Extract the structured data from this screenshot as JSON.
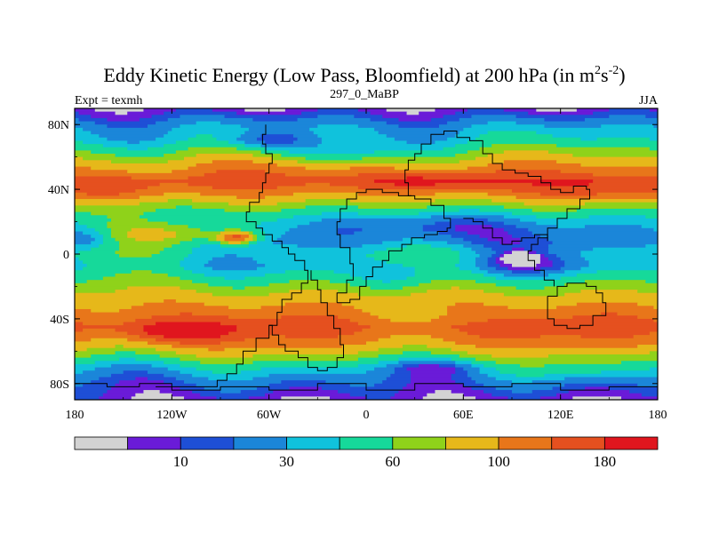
{
  "chart_data": {
    "type": "heatmap",
    "title": "Eddy Kinetic Energy (Low Pass, Bloomfield) at 200 hPa (in m",
    "title_units_base": "s",
    "title_sup1": "2",
    "title_sup2": "-2",
    "title_close": ")",
    "subtitle": "297_0_MaBP",
    "left_label": "Expt = texmh",
    "right_label": "JJA",
    "xlabel": "",
    "ylabel": "",
    "xlim": [
      -180,
      180
    ],
    "ylim": [
      -90,
      90
    ],
    "x_ticks": [
      {
        "value": -180,
        "label": "180"
      },
      {
        "value": -120,
        "label": "120W"
      },
      {
        "value": -60,
        "label": "60W"
      },
      {
        "value": 0,
        "label": "0"
      },
      {
        "value": 60,
        "label": "60E"
      },
      {
        "value": 120,
        "label": "120E"
      },
      {
        "value": 180,
        "label": "180"
      }
    ],
    "y_ticks": [
      {
        "value": 80,
        "label": "80N"
      },
      {
        "value": 40,
        "label": "40N"
      },
      {
        "value": 0,
        "label": "0"
      },
      {
        "value": -40,
        "label": "40S"
      },
      {
        "value": -80,
        "label": "80S"
      }
    ],
    "levels": [
      0,
      10,
      20,
      30,
      45,
      60,
      80,
      100,
      125,
      150,
      180,
      220
    ],
    "colorbar_colors": [
      "#d3d3d3",
      "#6a1bd8",
      "#1e4fd6",
      "#1b86d9",
      "#10c2dc",
      "#16d99a",
      "#8fd21a",
      "#e6b81a",
      "#e8761a",
      "#e5501f",
      "#e0161e"
    ],
    "colorbar_labels": [
      {
        "pos": 1,
        "label": "10"
      },
      {
        "pos": 3,
        "label": "30"
      },
      {
        "pos": 5,
        "label": "60"
      },
      {
        "pos": 7,
        "label": "100"
      },
      {
        "pos": 9,
        "label": "180"
      }
    ],
    "latitude_profile": [
      {
        "lat": 90,
        "value": 12
      },
      {
        "lat": 85,
        "value": 25
      },
      {
        "lat": 78,
        "value": 45
      },
      {
        "lat": 70,
        "value": 60
      },
      {
        "lat": 62,
        "value": 90
      },
      {
        "lat": 55,
        "value": 120
      },
      {
        "lat": 45,
        "value": 160
      },
      {
        "lat": 38,
        "value": 130
      },
      {
        "lat": 30,
        "value": 90
      },
      {
        "lat": 22,
        "value": 60
      },
      {
        "lat": 15,
        "value": 45
      },
      {
        "lat": 8,
        "value": 40
      },
      {
        "lat": 0,
        "value": 60
      },
      {
        "lat": -8,
        "value": 55
      },
      {
        "lat": -15,
        "value": 75
      },
      {
        "lat": -25,
        "value": 105
      },
      {
        "lat": -35,
        "value": 135
      },
      {
        "lat": -45,
        "value": 165
      },
      {
        "lat": -55,
        "value": 130
      },
      {
        "lat": -62,
        "value": 95
      },
      {
        "lat": -70,
        "value": 55
      },
      {
        "lat": -78,
        "value": 32
      },
      {
        "lat": -85,
        "value": 20
      },
      {
        "lat": -90,
        "value": 12
      }
    ],
    "anomalies": [
      {
        "lon": -120,
        "lat": 12,
        "w": 45,
        "h": 8,
        "amp": 60
      },
      {
        "lon": -80,
        "lat": 10,
        "w": 12,
        "h": 4,
        "amp": 100
      },
      {
        "lon": -60,
        "lat": 70,
        "w": 30,
        "h": 6,
        "amp": -40
      },
      {
        "lon": -20,
        "lat": 62,
        "w": 40,
        "h": 6,
        "amp": -35
      },
      {
        "lon": 40,
        "lat": 18,
        "w": 50,
        "h": 10,
        "amp": -35
      },
      {
        "lon": 100,
        "lat": -5,
        "w": 35,
        "h": 9,
        "amp": -30
      },
      {
        "lon": 95,
        "lat": -2,
        "w": 10,
        "h": 3,
        "amp": -45
      },
      {
        "lon": -170,
        "lat": 10,
        "w": 15,
        "h": 6,
        "amp": -25
      },
      {
        "lon": 40,
        "lat": 45,
        "w": 40,
        "h": 6,
        "amp": 45
      },
      {
        "lon": 145,
        "lat": 40,
        "w": 40,
        "h": 7,
        "amp": 35
      },
      {
        "lon": -160,
        "lat": 40,
        "w": 35,
        "h": 7,
        "amp": 30
      },
      {
        "lon": -115,
        "lat": -48,
        "w": 30,
        "h": 6,
        "amp": 60
      },
      {
        "lon": 45,
        "lat": -70,
        "w": 30,
        "h": 5,
        "amp": -25
      },
      {
        "lon": 130,
        "lat": -72,
        "w": 45,
        "h": 6,
        "amp": 15
      },
      {
        "lon": 40,
        "lat": -40,
        "w": 45,
        "h": 8,
        "amp": -20
      },
      {
        "lon": 20,
        "lat": -15,
        "w": 30,
        "h": 8,
        "amp": -25
      }
    ]
  }
}
